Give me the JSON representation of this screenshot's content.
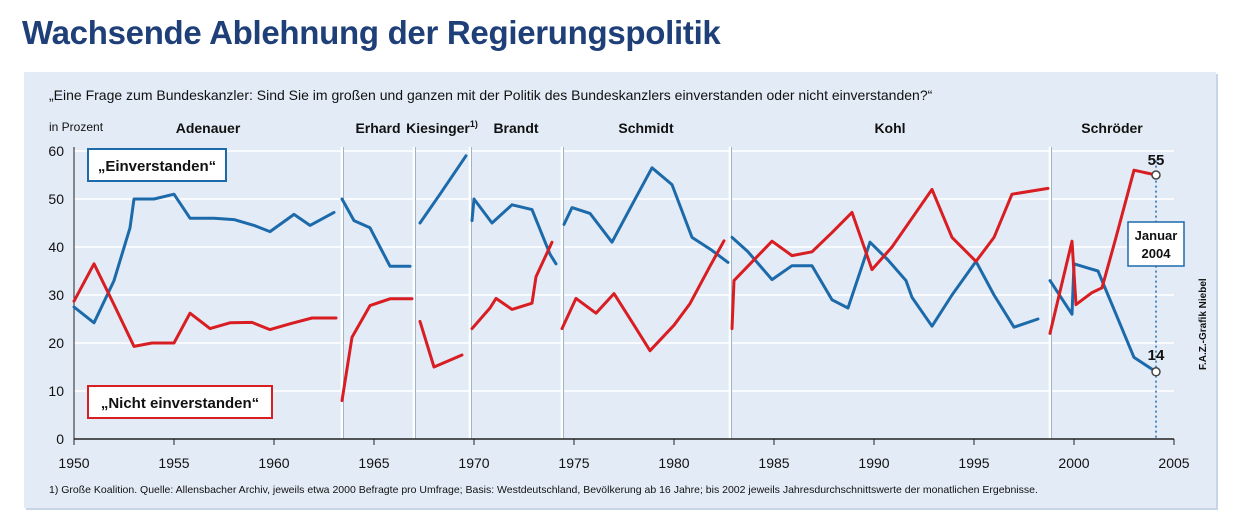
{
  "headline": "Wachsende Ablehnung der Regierungspolitik",
  "question": "„Eine Frage zum Bundeskanzler: Sind Sie im großen und ganzen mit der Politik des Bundeskanzlers einverstanden oder nicht einverstanden?“",
  "footnote": "1) Große Koalition. Quelle: Allensbacher Archiv, jeweils etwa 2000 Befragte pro Umfrage; Basis: Westdeutschland, Bevölkerung ab 16 Jahre; bis 2002 jeweils Jahresdurchschnittswerte der monatlichen Ergebnisse.",
  "credit": "F.A.Z.-Grafik Niebel",
  "colors": {
    "approve": "#1d6aab",
    "disapprove": "#d81e22",
    "title": "#1f3f78",
    "panel": "#e3ecf6",
    "grid": "#ffffff"
  },
  "chart_data": {
    "type": "line",
    "ylabel": "in Prozent",
    "ylim": [
      0,
      60
    ],
    "xlim": [
      1950,
      2005
    ],
    "x_ticks": [
      "1950",
      "1955",
      "1960",
      "1965",
      "1970",
      "1975",
      "1980",
      "1985",
      "1990",
      "1995",
      "2000",
      "2005"
    ],
    "y_ticks": [
      "0",
      "10",
      "20",
      "30",
      "40",
      "50",
      "60"
    ],
    "legend_approve": "„Einverstanden“",
    "legend_disapprove": "„Nicht einverstanden“",
    "chancellors": [
      {
        "name": "Adenauer",
        "start": 1950,
        "end": 1963.4
      },
      {
        "name": "Erhard",
        "start": 1963.4,
        "end": 1967.0
      },
      {
        "name": "Kiesinger",
        "footnote_mark": "1)",
        "start": 1967.0,
        "end": 1969.8
      },
      {
        "name": "Brandt",
        "start": 1969.8,
        "end": 1974.4
      },
      {
        "name": "Schmidt",
        "start": 1974.4,
        "end": 1982.8
      },
      {
        "name": "Kohl",
        "start": 1982.8,
        "end": 1998.8
      },
      {
        "name": "Schröder",
        "start": 1998.8,
        "end": 2005
      }
    ],
    "series": [
      {
        "name": "Einverstanden",
        "segments": [
          [
            [
              1950.0,
              27.5
            ],
            [
              1951.0,
              24.2
            ],
            [
              1952.0,
              33.0
            ],
            [
              1952.8,
              44.0
            ],
            [
              1953.0,
              50.0
            ],
            [
              1954.0,
              50.0
            ],
            [
              1955.0,
              51.0
            ],
            [
              1955.8,
              46.0
            ],
            [
              1957.0,
              46.0
            ],
            [
              1958.0,
              45.7
            ],
            [
              1959.0,
              44.5
            ],
            [
              1959.8,
              43.2
            ],
            [
              1961.0,
              46.8
            ],
            [
              1961.8,
              44.5
            ],
            [
              1963.0,
              47.2
            ]
          ],
          [
            [
              1963.4,
              50.0
            ],
            [
              1964.0,
              45.5
            ],
            [
              1964.8,
              44.0
            ],
            [
              1965.8,
              36.0
            ],
            [
              1966.8,
              36.0
            ]
          ],
          [
            [
              1967.3,
              45.0
            ],
            [
              1968.3,
              51.0
            ],
            [
              1969.6,
              59.0
            ]
          ],
          [
            [
              1969.9,
              45.5
            ],
            [
              1970.0,
              50.0
            ],
            [
              1970.9,
              45.0
            ],
            [
              1971.9,
              48.8
            ],
            [
              1972.9,
              47.8
            ],
            [
              1973.8,
              38.5
            ],
            [
              1974.1,
              36.5
            ]
          ],
          [
            [
              1974.5,
              44.7
            ],
            [
              1974.9,
              48.2
            ],
            [
              1975.8,
              47.0
            ],
            [
              1976.9,
              41.0
            ],
            [
              1977.9,
              48.8
            ],
            [
              1978.9,
              56.5
            ],
            [
              1979.9,
              53.0
            ],
            [
              1980.9,
              42.0
            ],
            [
              1981.9,
              39.3
            ],
            [
              1982.7,
              36.8
            ]
          ],
          [
            [
              1982.9,
              42.0
            ],
            [
              1983.7,
              39.0
            ],
            [
              1984.9,
              33.2
            ],
            [
              1985.9,
              36.1
            ],
            [
              1986.9,
              36.1
            ],
            [
              1987.9,
              29.0
            ],
            [
              1988.7,
              27.3
            ],
            [
              1989.8,
              41.0
            ],
            [
              1990.7,
              37.3
            ],
            [
              1991.6,
              33.0
            ],
            [
              1991.9,
              29.5
            ],
            [
              1992.9,
              23.5
            ],
            [
              1993.9,
              30.0
            ],
            [
              1995.1,
              37.0
            ],
            [
              1996.0,
              30.0
            ],
            [
              1997.0,
              23.3
            ],
            [
              1998.2,
              25.0
            ]
          ],
          [
            [
              1998.8,
              33.0
            ],
            [
              1999.9,
              26.0
            ],
            [
              2000.0,
              36.5
            ],
            [
              2000.7,
              35.6
            ],
            [
              2001.2,
              35.0
            ],
            [
              2002.1,
              26.0
            ],
            [
              2003.0,
              17.0
            ],
            [
              2004.1,
              14.0
            ]
          ]
        ]
      },
      {
        "name": "Nicht einverstanden",
        "segments": [
          [
            [
              1950.0,
              28.7
            ],
            [
              1951.0,
              36.5
            ],
            [
              1952.0,
              28.0
            ],
            [
              1953.0,
              19.3
            ],
            [
              1953.9,
              20.0
            ],
            [
              1955.0,
              20.0
            ],
            [
              1955.8,
              26.2
            ],
            [
              1956.8,
              23.0
            ],
            [
              1957.8,
              24.2
            ],
            [
              1958.9,
              24.3
            ],
            [
              1959.8,
              22.8
            ],
            [
              1960.8,
              24.0
            ],
            [
              1961.9,
              25.2
            ],
            [
              1963.1,
              25.2
            ]
          ],
          [
            [
              1963.4,
              8.0
            ],
            [
              1963.9,
              21.2
            ],
            [
              1964.8,
              27.8
            ],
            [
              1965.8,
              29.2
            ],
            [
              1966.9,
              29.2
            ]
          ],
          [
            [
              1967.3,
              24.5
            ],
            [
              1968.0,
              15.0
            ],
            [
              1969.4,
              17.5
            ]
          ],
          [
            [
              1969.9,
              23.0
            ],
            [
              1970.8,
              27.3
            ],
            [
              1971.1,
              29.3
            ],
            [
              1971.9,
              27.0
            ],
            [
              1972.9,
              28.3
            ],
            [
              1973.1,
              33.8
            ],
            [
              1973.9,
              41.0
            ]
          ],
          [
            [
              1974.4,
              23.0
            ],
            [
              1975.1,
              29.3
            ],
            [
              1976.1,
              26.2
            ],
            [
              1977.0,
              30.3
            ],
            [
              1977.9,
              24.4
            ],
            [
              1978.8,
              18.4
            ],
            [
              1980.0,
              23.7
            ],
            [
              1980.8,
              28.2
            ],
            [
              1981.8,
              36.0
            ],
            [
              1982.5,
              41.3
            ]
          ],
          [
            [
              1982.9,
              23.0
            ],
            [
              1983.0,
              33.0
            ],
            [
              1984.9,
              41.2
            ],
            [
              1985.9,
              38.2
            ],
            [
              1986.9,
              39.0
            ],
            [
              1987.9,
              43.0
            ],
            [
              1988.9,
              47.2
            ],
            [
              1989.9,
              35.3
            ],
            [
              1990.9,
              40.0
            ],
            [
              1991.9,
              46.0
            ],
            [
              1992.9,
              52.0
            ],
            [
              1993.9,
              42.0
            ],
            [
              1995.1,
              37.0
            ],
            [
              1996.0,
              42.0
            ],
            [
              1996.9,
              51.0
            ],
            [
              1998.7,
              52.2
            ]
          ],
          [
            [
              1998.8,
              22.0
            ],
            [
              1999.9,
              41.2
            ],
            [
              2000.1,
              28.0
            ],
            [
              2000.9,
              30.5
            ],
            [
              2001.4,
              31.5
            ],
            [
              2002.1,
              42.0
            ],
            [
              2003.0,
              56.0
            ],
            [
              2004.1,
              55.0
            ]
          ]
        ]
      }
    ],
    "annotations": [
      {
        "label": "55",
        "x": 2004.1,
        "y": 55.0
      },
      {
        "label": "14",
        "x": 2004.1,
        "y": 14.0
      },
      {
        "label": "Januar 2004",
        "line1": "Januar",
        "line2": "2004"
      }
    ]
  }
}
